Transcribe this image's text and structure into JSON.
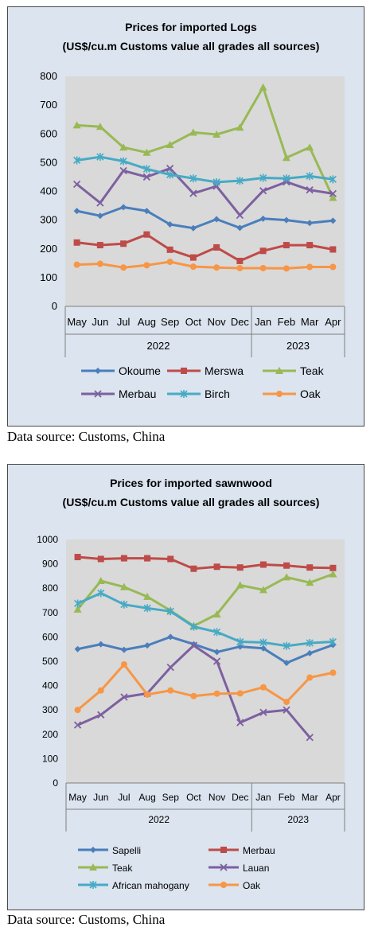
{
  "chart_data": [
    {
      "type": "line",
      "title": "Prices for imported Logs",
      "subtitle": "(US$/cu.m Customs value all grades all sources)",
      "categories": [
        "May",
        "Jun",
        "Jul",
        "Aug",
        "Sep",
        "Oct",
        "Nov",
        "Dec",
        "Jan",
        "Feb",
        "Mar",
        "Apr"
      ],
      "year_groups": [
        {
          "label": "2022",
          "count": 8
        },
        {
          "label": "2023",
          "count": 4
        }
      ],
      "ylim": [
        0,
        800
      ],
      "yticks": [
        0,
        100,
        200,
        300,
        400,
        500,
        600,
        700,
        800
      ],
      "grid": false,
      "legend_position": "bottom",
      "series": [
        {
          "name": "Okoume",
          "color": "#4a7ebb",
          "marker": "diamond",
          "values": [
            332,
            315,
            345,
            332,
            285,
            272,
            303,
            273,
            305,
            300,
            290,
            298
          ]
        },
        {
          "name": "Merswa",
          "color": "#be4b48",
          "marker": "square",
          "values": [
            222,
            213,
            218,
            250,
            197,
            170,
            205,
            158,
            193,
            213,
            213,
            198
          ]
        },
        {
          "name": "Teak",
          "color": "#98b954",
          "marker": "triangle",
          "values": [
            630,
            625,
            553,
            535,
            562,
            605,
            598,
            622,
            762,
            517,
            553,
            378
          ]
        },
        {
          "name": "Merbau",
          "color": "#7d60a0",
          "marker": "x",
          "values": [
            425,
            360,
            472,
            450,
            480,
            393,
            418,
            317,
            402,
            433,
            405,
            392
          ]
        },
        {
          "name": "Birch",
          "color": "#46aac5",
          "marker": "star",
          "values": [
            508,
            520,
            505,
            478,
            458,
            445,
            432,
            437,
            447,
            445,
            453,
            442
          ]
        },
        {
          "name": "Oak",
          "color": "#f79646",
          "marker": "circle",
          "values": [
            145,
            148,
            135,
            143,
            155,
            138,
            135,
            133,
            133,
            132,
            137,
            137
          ]
        }
      ]
    },
    {
      "type": "line",
      "title": "Prices for imported sawnwood",
      "subtitle": "(US$/cu.m Customs value all grades all sources)",
      "categories": [
        "May",
        "Jun",
        "Jul",
        "Aug",
        "Sep",
        "Oct",
        "Nov",
        "Dec",
        "Jan",
        "Feb",
        "Mar",
        "Apr"
      ],
      "year_groups": [
        {
          "label": "2022",
          "count": 8
        },
        {
          "label": "2023",
          "count": 4
        }
      ],
      "ylim": [
        0,
        1000
      ],
      "yticks": [
        0,
        100,
        200,
        300,
        400,
        500,
        600,
        700,
        800,
        900,
        1000
      ],
      "grid": false,
      "legend_position": "bottom",
      "series": [
        {
          "name": "Sapelli",
          "color": "#4a7ebb",
          "marker": "diamond",
          "values": [
            550,
            570,
            547,
            565,
            600,
            570,
            538,
            560,
            553,
            493,
            533,
            567
          ]
        },
        {
          "name": "Merbau",
          "color": "#be4b48",
          "marker": "square",
          "values": [
            928,
            920,
            923,
            923,
            920,
            880,
            888,
            885,
            897,
            893,
            885,
            883
          ]
        },
        {
          "name": "Teak",
          "color": "#98b954",
          "marker": "triangle",
          "values": [
            713,
            830,
            805,
            765,
            708,
            645,
            693,
            812,
            793,
            845,
            823,
            858
          ]
        },
        {
          "name": "Lauan",
          "color": "#7d60a0",
          "marker": "x",
          "values": [
            238,
            280,
            353,
            368,
            475,
            565,
            500,
            248,
            290,
            300,
            187,
            null
          ]
        },
        {
          "name": "African mahogany",
          "color": "#46aac5",
          "marker": "star",
          "values": [
            737,
            780,
            733,
            718,
            705,
            642,
            620,
            580,
            577,
            563,
            575,
            580
          ]
        },
        {
          "name": "Oak",
          "color": "#f79646",
          "marker": "circle",
          "values": [
            300,
            380,
            487,
            363,
            380,
            357,
            367,
            368,
            393,
            333,
            433,
            453
          ]
        }
      ]
    }
  ],
  "sources": [
    "Data source: Customs, China",
    "Data source: Customs, China"
  ]
}
